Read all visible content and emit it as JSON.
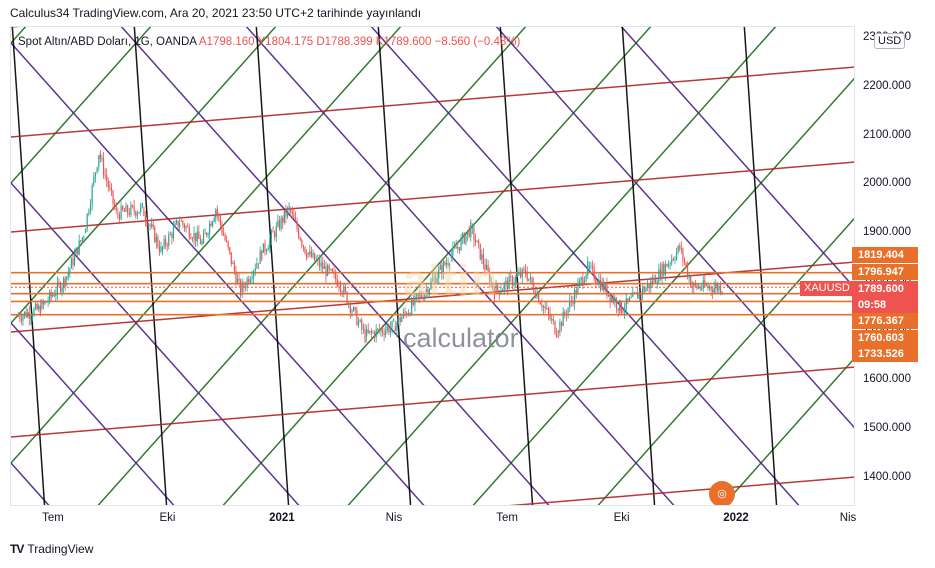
{
  "header": {
    "text": "Calculus34 TradingView.com, Ara 20, 2021 23:50 UTC+2 tarihinde yayınlandı"
  },
  "legend": {
    "symbol": "Spot Altın/ABD Doları, 1G, OANDA",
    "ohlc": "A1798.160  Y1804.175  D1788.399  K1789.600  −8.560 (−0.48%)"
  },
  "currency": "USD",
  "symbol_tag": "XAUUSD",
  "price_labels": [
    {
      "text": "1819.404",
      "color": "#e8702a"
    },
    {
      "text": "1796.947",
      "color": "#e8702a"
    },
    {
      "text": "1789.600",
      "color": "#ef5350"
    },
    {
      "text": "09:58",
      "color": "#ef5350"
    },
    {
      "text": "1776.367",
      "color": "#e8702a"
    },
    {
      "text": "1760.603",
      "color": "#e8702a"
    },
    {
      "text": "1733.526",
      "color": "#e8702a"
    }
  ],
  "watermark": {
    "brand": "altin",
    "sub": "calculator"
  },
  "footer": {
    "logo": "TV",
    "brand": "TradingView"
  },
  "colors": {
    "up": "#26a69a",
    "down": "#ef5350",
    "red_line": "#b22222",
    "purple_line": "#4b1f8a",
    "green_line": "#1e6b1e",
    "black_line": "#000000",
    "level": "#e8702a"
  },
  "chart_data": {
    "type": "candlestick",
    "title": "Spot Altın/ABD Doları, 1G, OANDA",
    "y_ticks": [
      "2300.000",
      "2200.000",
      "2100.000",
      "2000.000",
      "1900.000",
      "1800.000",
      "1700.000",
      "1600.000",
      "1500.000",
      "1400.000"
    ],
    "x_ticks": [
      "Tem",
      "Eki",
      "2021",
      "Nis",
      "Tem",
      "Eki",
      "2022",
      "Nis"
    ],
    "ylim": [
      1340,
      2322
    ],
    "horizontal_levels": [
      1819.404,
      1796.947,
      1776.367,
      1760.603,
      1733.526
    ],
    "last_price": 1789.6,
    "price_path": [
      {
        "date": "2020-06-01",
        "close": 1730
      },
      {
        "date": "2020-06-20",
        "close": 1745
      },
      {
        "date": "2020-07-10",
        "close": 1805
      },
      {
        "date": "2020-07-25",
        "close": 1900
      },
      {
        "date": "2020-08-06",
        "close": 2065
      },
      {
        "date": "2020-08-20",
        "close": 1940
      },
      {
        "date": "2020-09-10",
        "close": 1950
      },
      {
        "date": "2020-09-25",
        "close": 1865
      },
      {
        "date": "2020-10-10",
        "close": 1925
      },
      {
        "date": "2020-10-28",
        "close": 1880
      },
      {
        "date": "2020-11-08",
        "close": 1950
      },
      {
        "date": "2020-11-28",
        "close": 1780
      },
      {
        "date": "2020-12-15",
        "close": 1860
      },
      {
        "date": "2021-01-06",
        "close": 1950
      },
      {
        "date": "2021-01-20",
        "close": 1860
      },
      {
        "date": "2021-02-15",
        "close": 1800
      },
      {
        "date": "2021-03-08",
        "close": 1690
      },
      {
        "date": "2021-03-31",
        "close": 1710
      },
      {
        "date": "2021-04-25",
        "close": 1780
      },
      {
        "date": "2021-05-15",
        "close": 1850
      },
      {
        "date": "2021-06-01",
        "close": 1910
      },
      {
        "date": "2021-06-20",
        "close": 1780
      },
      {
        "date": "2021-07-15",
        "close": 1820
      },
      {
        "date": "2021-08-09",
        "close": 1700
      },
      {
        "date": "2021-09-03",
        "close": 1830
      },
      {
        "date": "2021-09-30",
        "close": 1745
      },
      {
        "date": "2021-10-25",
        "close": 1800
      },
      {
        "date": "2021-11-16",
        "close": 1870
      },
      {
        "date": "2021-11-26",
        "close": 1790
      },
      {
        "date": "2021-12-20",
        "close": 1789.6
      }
    ]
  }
}
